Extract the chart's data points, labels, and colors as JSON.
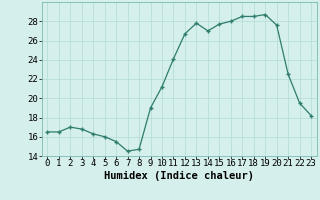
{
  "x": [
    0,
    1,
    2,
    3,
    4,
    5,
    6,
    7,
    8,
    9,
    10,
    11,
    12,
    13,
    14,
    15,
    16,
    17,
    18,
    19,
    20,
    21,
    22,
    23
  ],
  "y": [
    16.5,
    16.5,
    17.0,
    16.8,
    16.3,
    16.0,
    15.5,
    14.5,
    14.7,
    19.0,
    21.2,
    24.1,
    26.7,
    27.8,
    27.0,
    27.7,
    28.0,
    28.5,
    28.5,
    28.7,
    27.6,
    22.5,
    19.5,
    18.2
  ],
  "xlabel": "Humidex (Indice chaleur)",
  "ylim": [
    14,
    30
  ],
  "xlim": [
    -0.5,
    23.5
  ],
  "yticks": [
    14,
    16,
    18,
    20,
    22,
    24,
    26,
    28
  ],
  "line_color": "#2E7D6E",
  "bg_color": "#D4EFEC",
  "grid_color": "#B8DEDA",
  "tick_fontsize": 6.5,
  "xlabel_fontsize": 7.5
}
